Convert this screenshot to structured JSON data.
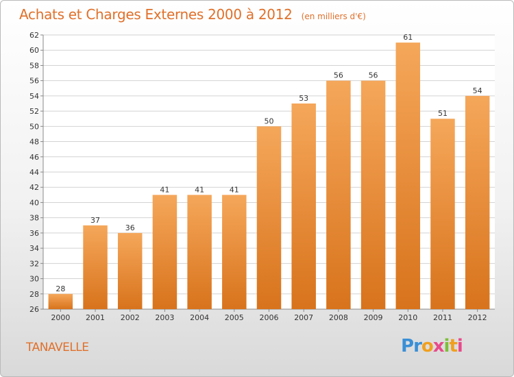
{
  "header": {
    "title": "Achats et Charges Externes 2000 à 2012",
    "unit": "(en milliers d'€)"
  },
  "footer": {
    "commune": "TANAVELLE",
    "logo_text": "Proxiti"
  },
  "colors": {
    "title": "#e0702a",
    "bar_light": "#f5a75a",
    "bar_dark": "#d8731c",
    "grid": "#d2d2d2"
  },
  "chart_data": {
    "type": "bar",
    "title": "Achats et Charges Externes 2000 à 2012",
    "subtitle": "(en milliers d'€)",
    "categories": [
      "2000",
      "2001",
      "2002",
      "2003",
      "2004",
      "2005",
      "2006",
      "2007",
      "2008",
      "2009",
      "2010",
      "2011",
      "2012"
    ],
    "values": [
      28,
      37,
      36,
      41,
      41,
      41,
      50,
      53,
      56,
      56,
      61,
      51,
      54
    ],
    "ylim": [
      26,
      62
    ],
    "yticks": [
      26,
      28,
      30,
      32,
      34,
      36,
      38,
      40,
      42,
      44,
      46,
      48,
      50,
      52,
      54,
      56,
      58,
      60,
      62
    ],
    "grid": true,
    "xlabel": "",
    "ylabel": ""
  }
}
